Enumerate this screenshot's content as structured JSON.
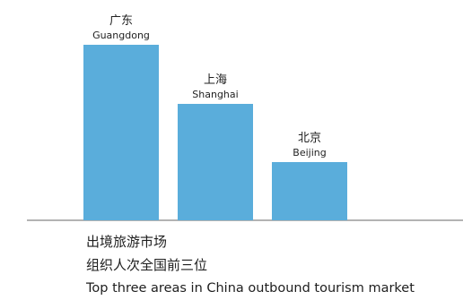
{
  "chart_data": {
    "type": "bar",
    "categories": [
      "Guangdong",
      "Shanghai",
      "Beijing"
    ],
    "categories_zh": [
      "广东",
      "上海",
      "北京"
    ],
    "values": [
      196,
      130,
      65
    ],
    "bar_color": "#5aaddb",
    "axis_color": "#9a9a9a",
    "grid": false
  },
  "caption": {
    "line1": "出境旅游市场",
    "line2": "组织人次全国前三位",
    "line3": "Top three areas in China outbound tourism market"
  }
}
